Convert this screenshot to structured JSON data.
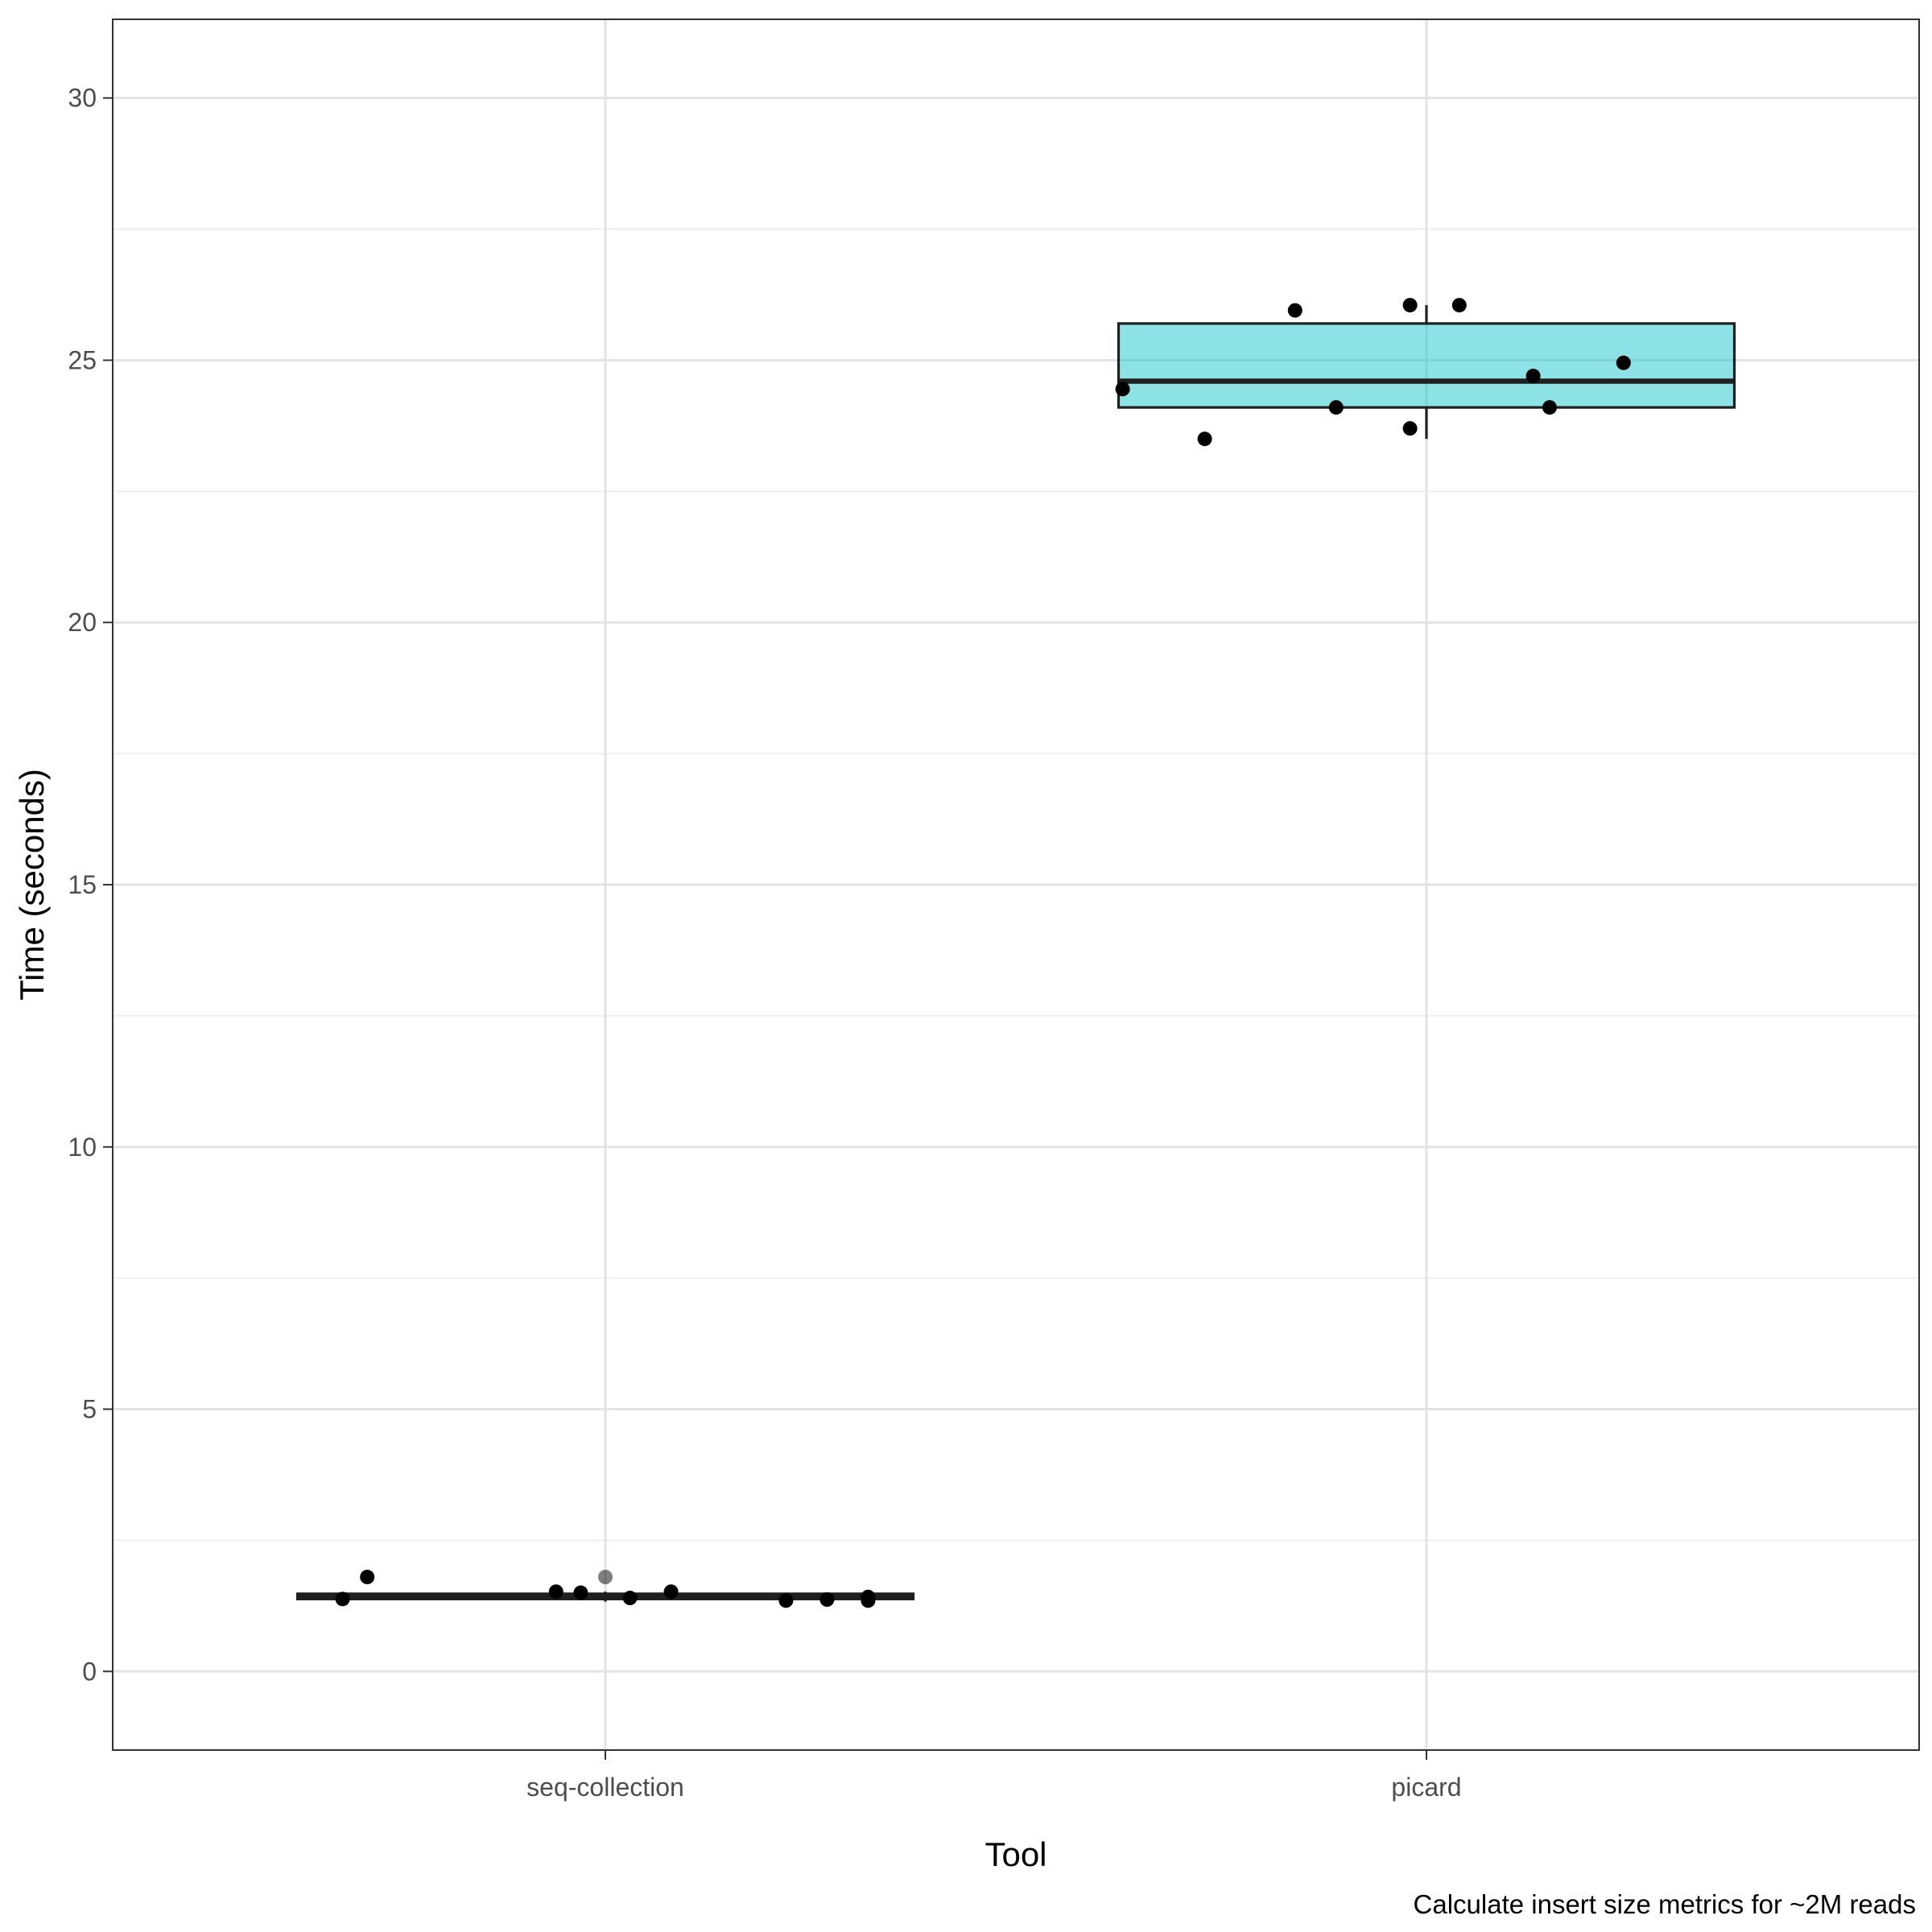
{
  "chart_data": {
    "type": "box",
    "xlabel": "Tool",
    "ylabel": "Time (seconds)",
    "caption": "Calculate insert size metrics for ~2M reads",
    "ylim": [
      -1.5,
      31.5
    ],
    "y_ticks": [
      0,
      5,
      10,
      15,
      20,
      25,
      30
    ],
    "categories": [
      "seq-collection",
      "picard"
    ],
    "grid": true,
    "legend": "none",
    "boxes": [
      {
        "category": "seq-collection",
        "fill": "#f8766d",
        "whisker_low": 1.33,
        "q1": 1.38,
        "median": 1.42,
        "q3": 1.48,
        "whisker_high": 1.52,
        "outliers": [
          1.8
        ]
      },
      {
        "category": "picard",
        "fill": "#00bfc4",
        "whisker_low": 23.5,
        "q1": 24.1,
        "median": 24.6,
        "q3": 25.7,
        "whisker_high": 26.05,
        "outliers": []
      }
    ],
    "points": [
      {
        "category": "seq-collection",
        "jitter": -0.32,
        "y": 1.38
      },
      {
        "category": "seq-collection",
        "jitter": -0.29,
        "y": 1.8
      },
      {
        "category": "seq-collection",
        "jitter": -0.06,
        "y": 1.52
      },
      {
        "category": "seq-collection",
        "jitter": -0.03,
        "y": 1.5
      },
      {
        "category": "seq-collection",
        "jitter": 0.03,
        "y": 1.4
      },
      {
        "category": "seq-collection",
        "jitter": 0.08,
        "y": 1.52
      },
      {
        "category": "seq-collection",
        "jitter": 0.22,
        "y": 1.35
      },
      {
        "category": "seq-collection",
        "jitter": 0.27,
        "y": 1.37
      },
      {
        "category": "seq-collection",
        "jitter": 0.32,
        "y": 1.35
      },
      {
        "category": "seq-collection",
        "jitter": 0.32,
        "y": 1.42
      },
      {
        "category": "picard",
        "jitter": -0.37,
        "y": 24.45
      },
      {
        "category": "picard",
        "jitter": -0.27,
        "y": 23.5
      },
      {
        "category": "picard",
        "jitter": -0.16,
        "y": 25.95
      },
      {
        "category": "picard",
        "jitter": -0.11,
        "y": 24.1
      },
      {
        "category": "picard",
        "jitter": -0.02,
        "y": 23.7
      },
      {
        "category": "picard",
        "jitter": -0.02,
        "y": 26.05
      },
      {
        "category": "picard",
        "jitter": 0.04,
        "y": 26.05
      },
      {
        "category": "picard",
        "jitter": 0.13,
        "y": 24.7
      },
      {
        "category": "picard",
        "jitter": 0.15,
        "y": 24.1
      },
      {
        "category": "picard",
        "jitter": 0.24,
        "y": 24.95
      }
    ]
  }
}
